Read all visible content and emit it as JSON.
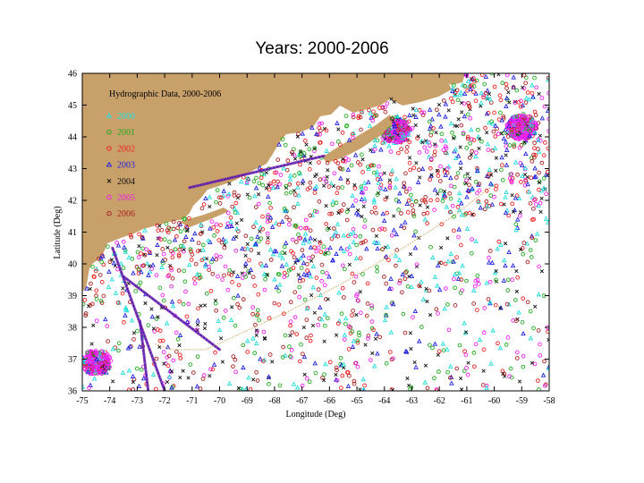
{
  "title": "Years: 2000-2006",
  "chart_data": {
    "type": "scatter",
    "title": "Years: 2000-2006",
    "xlabel": "Longitude (Deg)",
    "ylabel": "Latitude (Deg)",
    "xlim": [
      -75,
      -58
    ],
    "ylim": [
      36,
      46
    ],
    "x_ticks": [
      -75,
      -74,
      -73,
      -72,
      -71,
      -70,
      -69,
      -68,
      -67,
      -66,
      -65,
      -64,
      -63,
      -62,
      -61,
      -60,
      -59,
      -58
    ],
    "y_ticks": [
      36,
      37,
      38,
      39,
      40,
      41,
      42,
      43,
      44,
      45,
      46
    ],
    "grid": false,
    "legend_title": "Hydrographic Data, 2000-2006",
    "legend_position": "top-left",
    "land_color": "#c8a06a",
    "series": [
      {
        "name": "2000",
        "color": "#22dddd",
        "marker": "triangle"
      },
      {
        "name": "2001",
        "color": "#22aa22",
        "marker": "circle"
      },
      {
        "name": "2002",
        "color": "#ee2222",
        "marker": "circle"
      },
      {
        "name": "2003",
        "color": "#2222dd",
        "marker": "triangle"
      },
      {
        "name": "2004",
        "color": "#111111",
        "marker": "cross"
      },
      {
        "name": "2005",
        "color": "#ee22ee",
        "marker": "circle"
      },
      {
        "name": "2006",
        "color": "#aa2222",
        "marker": "circle"
      }
    ],
    "dense_clusters": [
      {
        "lon": -63.6,
        "lat": 44.2
      },
      {
        "lon": -74.5,
        "lat": 36.9
      },
      {
        "lon": -59.0,
        "lat": 44.3
      }
    ],
    "transects": [
      {
        "from": [
          -71.1,
          42.4
        ],
        "to": [
          -66.2,
          43.4
        ]
      },
      {
        "from": [
          -73.9,
          40.5
        ],
        "to": [
          -72.0,
          36.0
        ]
      },
      {
        "from": [
          -73.5,
          39.6
        ],
        "to": [
          -70.0,
          37.3
        ]
      },
      {
        "from": [
          -72.9,
          38.2
        ],
        "to": [
          -72.6,
          36.0
        ]
      }
    ],
    "reference_line": {
      "color": "#d2a35a",
      "points": [
        [
          -60.0,
          42.5
        ],
        [
          -61.5,
          41.5
        ],
        [
          -63.5,
          40.4
        ],
        [
          -65.5,
          39.4
        ],
        [
          -67.5,
          38.5
        ],
        [
          -69.5,
          37.7
        ],
        [
          -70.5,
          37.3
        ],
        [
          -71.8,
          37.3
        ],
        [
          -72.4,
          37.5
        ]
      ]
    }
  }
}
